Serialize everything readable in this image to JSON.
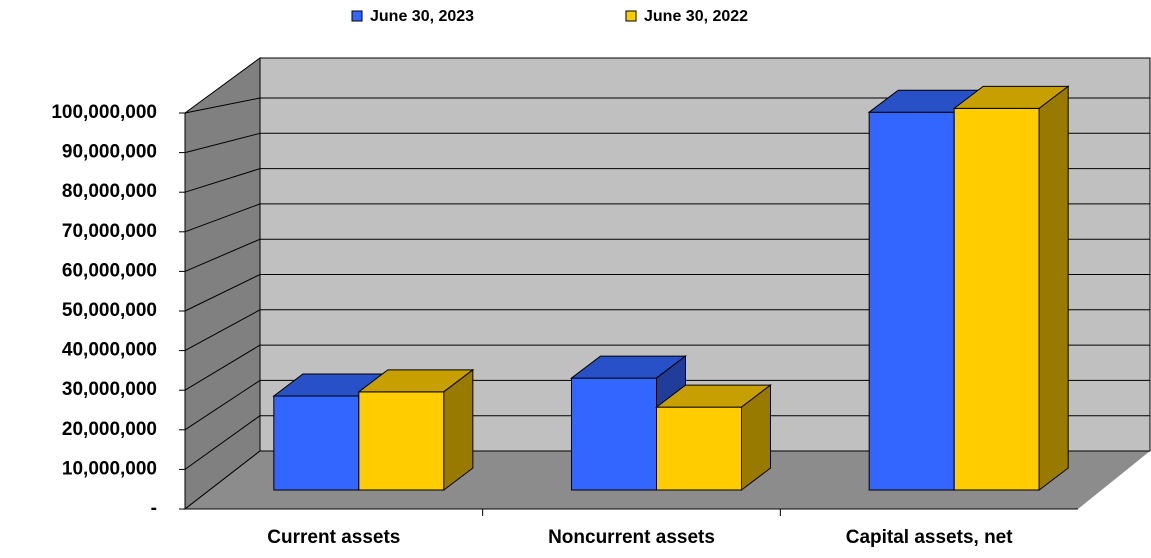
{
  "chart_data": {
    "type": "bar3d",
    "categories": [
      "Current assets",
      "Noncurrent assets",
      "Capital assets, net"
    ],
    "series": [
      {
        "name": "June 30, 2023",
        "color": "#3366ff",
        "values": [
          24600000,
          29300000,
          98900000
        ]
      },
      {
        "name": "June 30, 2022",
        "color": "#ffcc00",
        "values": [
          25700000,
          21700000,
          99900000
        ]
      }
    ],
    "ylim": [
      0,
      100000000
    ],
    "yticks": [
      {
        "value": 0,
        "label": "-"
      },
      {
        "value": 10000000,
        "label": "10,000,000"
      },
      {
        "value": 20000000,
        "label": "20,000,000"
      },
      {
        "value": 30000000,
        "label": "30,000,000"
      },
      {
        "value": 40000000,
        "label": "40,000,000"
      },
      {
        "value": 50000000,
        "label": "50,000,000"
      },
      {
        "value": 60000000,
        "label": "60,000,000"
      },
      {
        "value": 70000000,
        "label": "70,000,000"
      },
      {
        "value": 80000000,
        "label": "80,000,000"
      },
      {
        "value": 90000000,
        "label": "90,000,000"
      },
      {
        "value": 100000000,
        "label": "100,000,000"
      }
    ],
    "grid": true,
    "legend": "top"
  }
}
